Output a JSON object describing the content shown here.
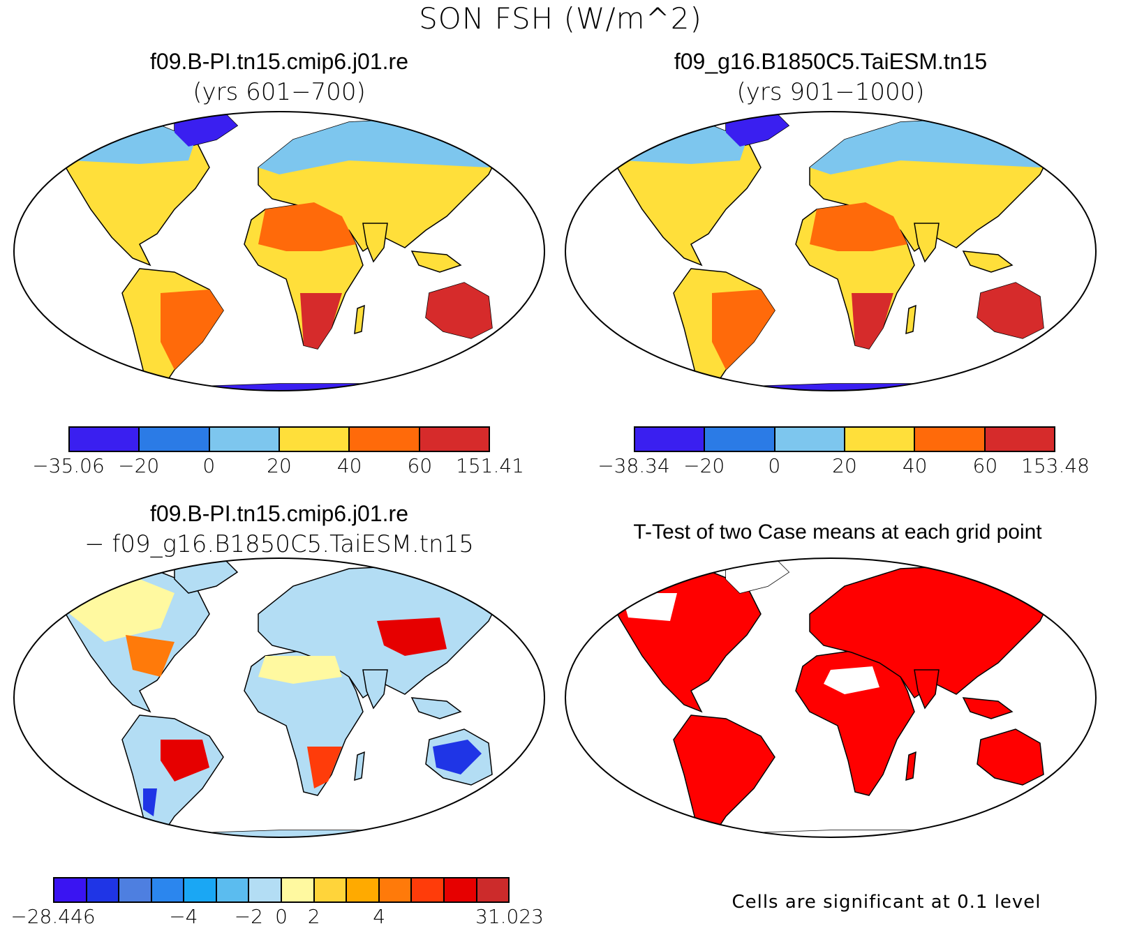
{
  "figure": {
    "title": "SON FSH (W/m^2)",
    "panels": [
      {
        "title": "f09.B-PI.tn15.cmip6.j01.re",
        "subtitle": "(yrs 601−700)",
        "colorbar": {
          "colors": [
            "#3a1ff0",
            "#2b7be6",
            "#7dc6ee",
            "#ffdf3a",
            "#ff6a0a",
            "#d62b2b"
          ],
          "tick_labels": [
            "−35.06",
            "−20",
            "0",
            "20",
            "40",
            "60",
            "151.41"
          ]
        }
      },
      {
        "title": "f09_g16.B1850C5.TaiESM.tn15",
        "subtitle": "(yrs 901−1000)",
        "colorbar": {
          "colors": [
            "#3a1ff0",
            "#2b7be6",
            "#7dc6ee",
            "#ffdf3a",
            "#ff6a0a",
            "#d62b2b"
          ],
          "tick_labels": [
            "−38.34",
            "−20",
            "0",
            "20",
            "40",
            "60",
            "153.48"
          ]
        }
      },
      {
        "title": "f09.B-PI.tn15.cmip6.j01.re",
        "subtitle": "− f09_g16.B1850C5.TaiESM.tn15",
        "colorbar": {
          "colors": [
            "#3a14f2",
            "#1f35e6",
            "#4e7fe0",
            "#2b86ee",
            "#1aa7f4",
            "#5bbcef",
            "#b3ddf4",
            "#fff9a0",
            "#ffd43a",
            "#ffaa00",
            "#ff7a0a",
            "#ff3c0a",
            "#e60000",
            "#cc2b2b"
          ],
          "tick_labels": [
            "−28.446",
            "−4",
            "−2",
            "0",
            "2",
            "4",
            "31.023"
          ]
        }
      },
      {
        "title": "T-Test of two Case means at each grid point",
        "note": "Cells are significant at 0.1 level",
        "significance_color": "#ff0000"
      }
    ]
  }
}
